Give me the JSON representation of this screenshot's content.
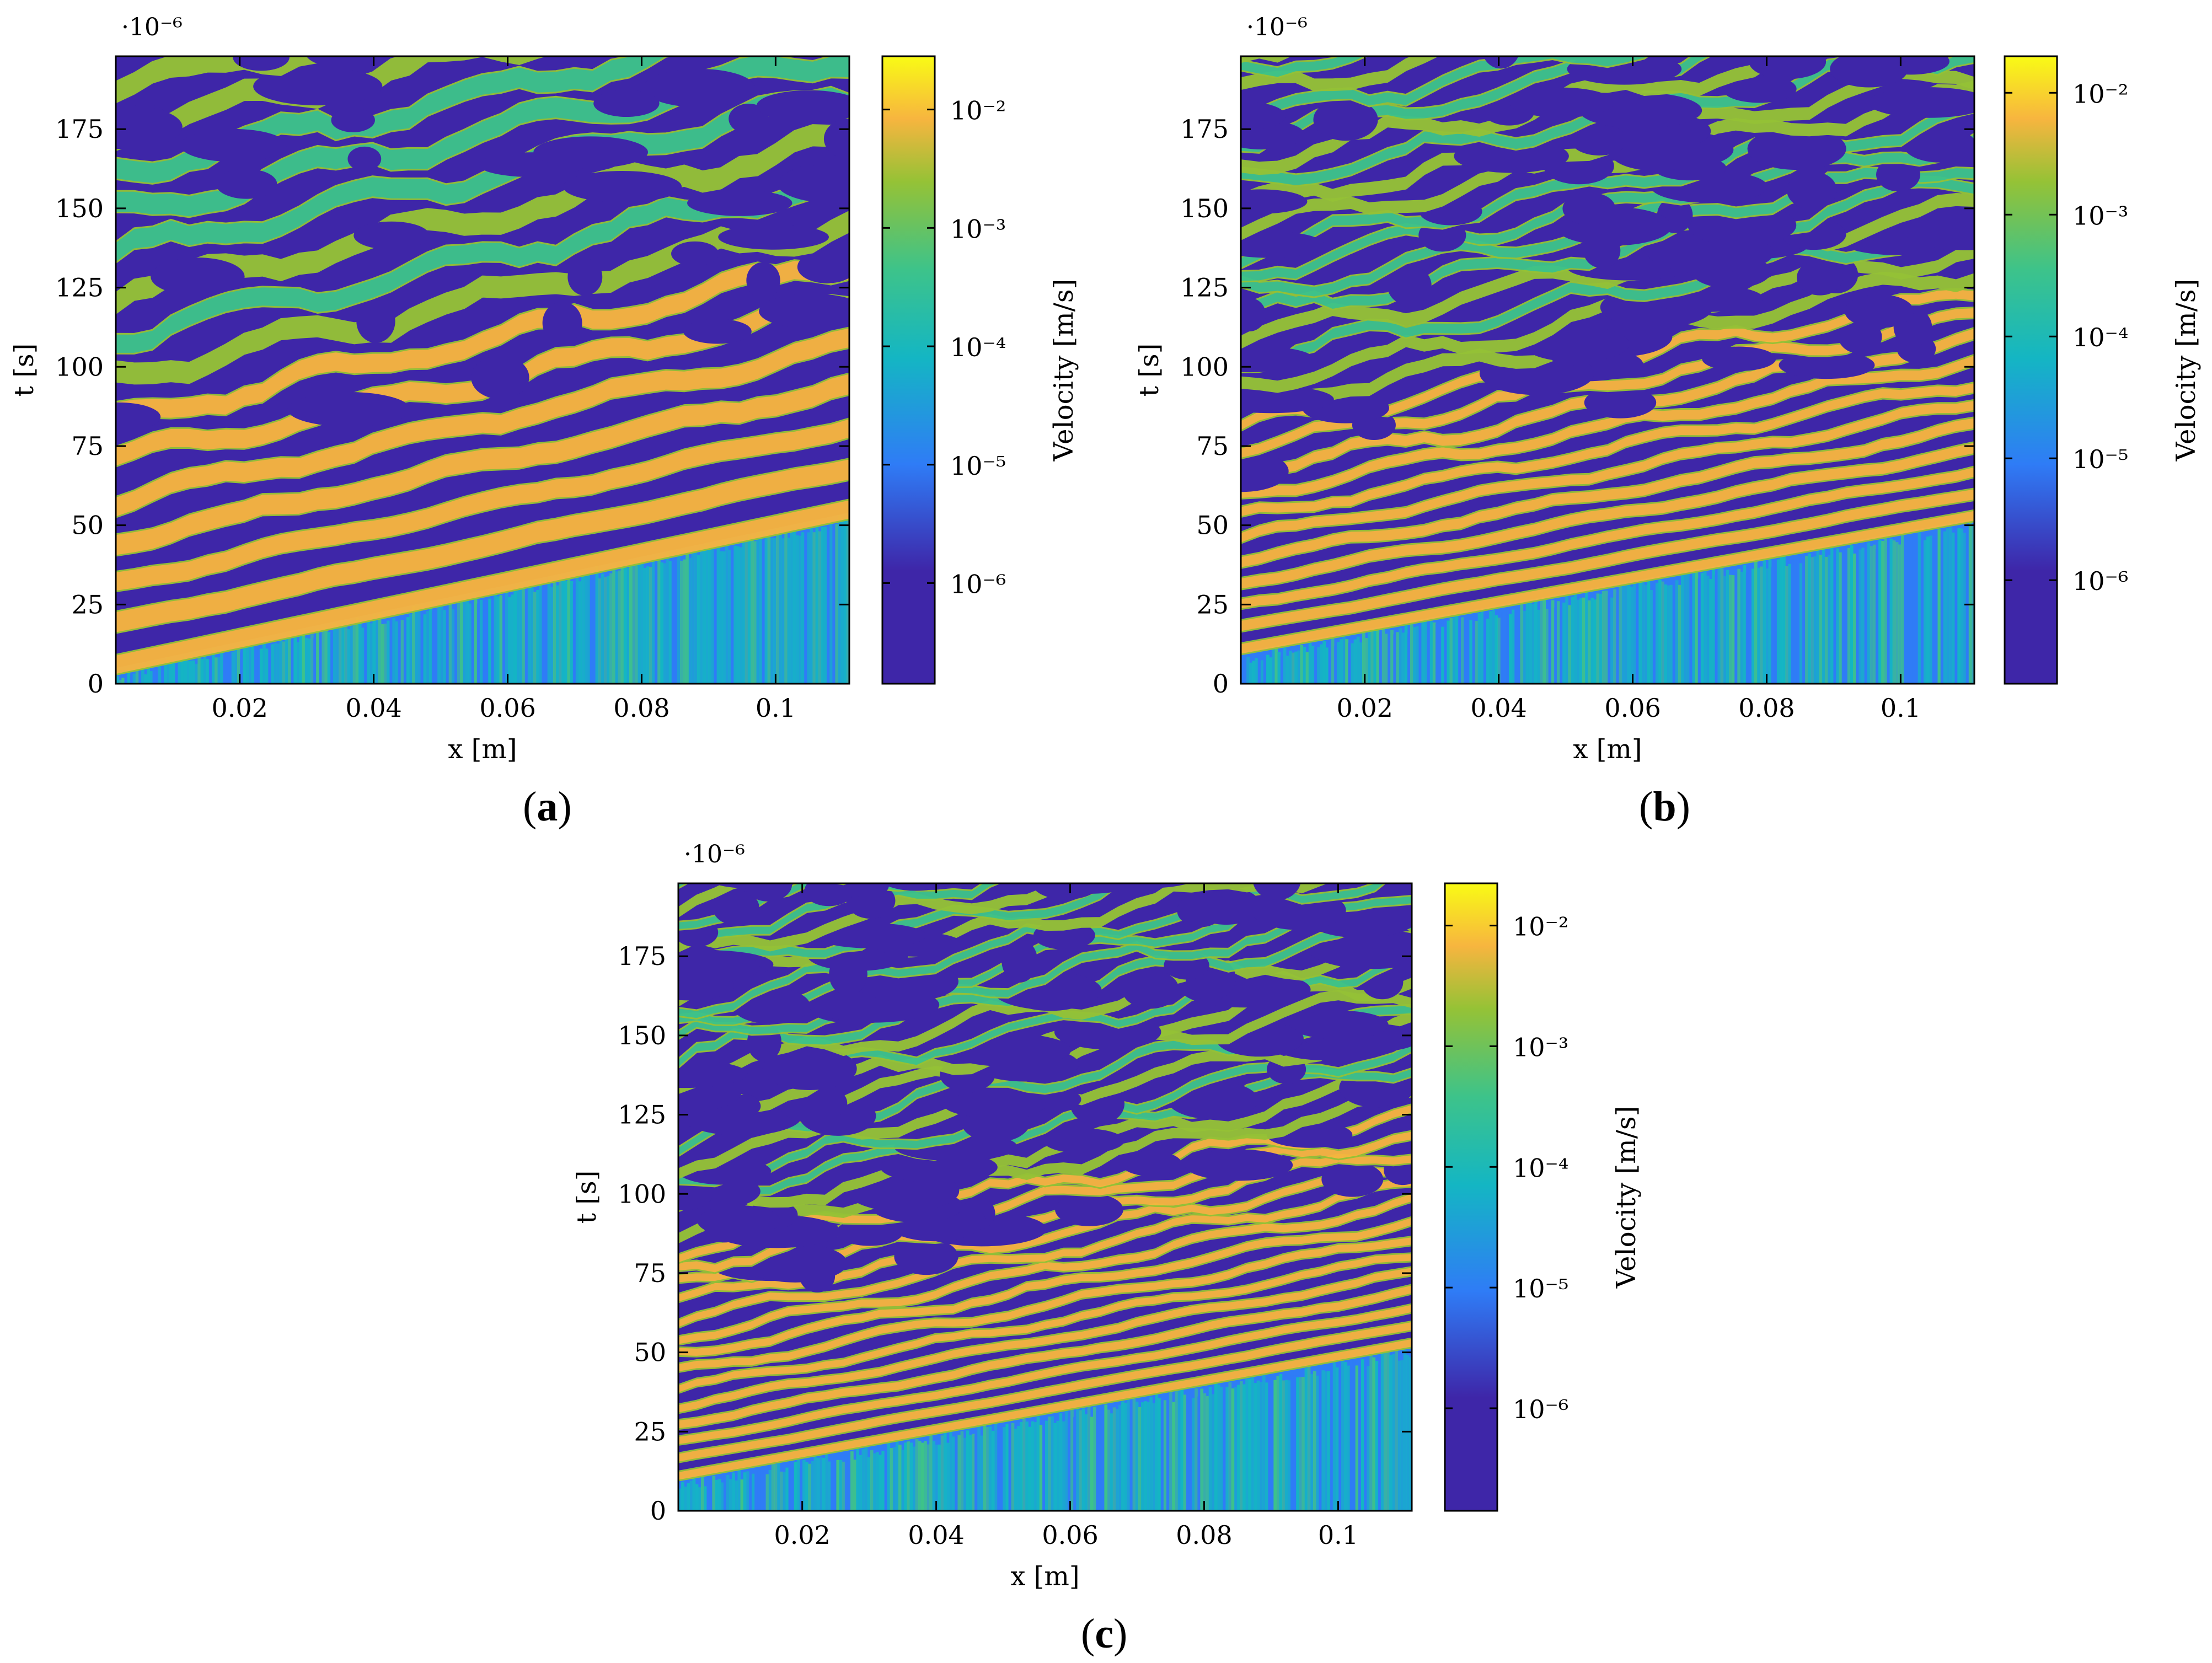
{
  "colors": {
    "low": "#3e26a8",
    "blue": "#2f7cf6",
    "cyan": "#14b6c3",
    "teal": "#3dc38a",
    "green": "#95c236",
    "orange": "#f7b53f",
    "yellow": "#f9fb15"
  },
  "chart_data": [
    {
      "type": "heatmap",
      "panel_label": "a",
      "xlabel": "x [m]",
      "ylabel": "t [s]",
      "y_scale_label": "·10⁻⁶",
      "xticks": [
        "0.02",
        "0.04",
        "0.06",
        "0.08",
        "0.1"
      ],
      "yticks": [
        "0",
        "25",
        "50",
        "75",
        "100",
        "125",
        "150",
        "175"
      ],
      "xlim": [
        0.0015,
        0.111
      ],
      "ylim": [
        0,
        198
      ],
      "colorbar": {
        "label": "Velocity [m/s]",
        "scale": "log",
        "ticks": [
          "10⁻⁶",
          "10⁻⁵",
          "10⁻⁴",
          "10⁻³",
          "10⁻²"
        ],
        "ticks_exponents": [
          -6,
          -5,
          -4,
          -3,
          -2
        ],
        "range_exponents": [
          -6.85,
          -1.55
        ]
      },
      "front_onset_t_at_x_min": 5,
      "front_onset_t_at_x_max": 54,
      "stripe_period": 13
    },
    {
      "type": "heatmap",
      "panel_label": "b",
      "xlabel": "x [m]",
      "ylabel": "t [s]",
      "y_scale_label": "·10⁻⁶",
      "xticks": [
        "0.02",
        "0.04",
        "0.06",
        "0.08",
        "0.1"
      ],
      "yticks": [
        "0",
        "25",
        "50",
        "75",
        "100",
        "125",
        "150",
        "175"
      ],
      "xlim": [
        0.0015,
        0.111
      ],
      "ylim": [
        0,
        198
      ],
      "colorbar": {
        "label": "Velocity [m/s]",
        "scale": "log",
        "ticks": [
          "10⁻⁶",
          "10⁻⁵",
          "10⁻⁴",
          "10⁻³",
          "10⁻²"
        ],
        "ticks_exponents": [
          -6,
          -5,
          -4,
          -3,
          -2
        ],
        "range_exponents": [
          -6.85,
          -1.7
        ]
      },
      "front_onset_t_at_x_min": 10,
      "front_onset_t_at_x_max": 52,
      "stripe_period": 7
    },
    {
      "type": "heatmap",
      "panel_label": "c",
      "xlabel": "x [m]",
      "ylabel": "t [s]",
      "y_scale_label": "·10⁻⁶",
      "xticks": [
        "0.02",
        "0.04",
        "0.06",
        "0.08",
        "0.1"
      ],
      "yticks": [
        "0",
        "25",
        "50",
        "75",
        "100",
        "125",
        "150",
        "175"
      ],
      "xlim": [
        0.0015,
        0.111
      ],
      "ylim": [
        0,
        198
      ],
      "colorbar": {
        "label": "Velocity [m/s]",
        "scale": "log",
        "ticks": [
          "10⁻⁶",
          "10⁻⁵",
          "10⁻⁴",
          "10⁻³",
          "10⁻²"
        ],
        "ticks_exponents": [
          -6,
          -5,
          -4,
          -3,
          -2
        ],
        "range_exponents": [
          -6.85,
          -1.65
        ]
      },
      "front_onset_t_at_x_min": 10,
      "front_onset_t_at_x_max": 52,
      "stripe_period": 5.5
    }
  ]
}
